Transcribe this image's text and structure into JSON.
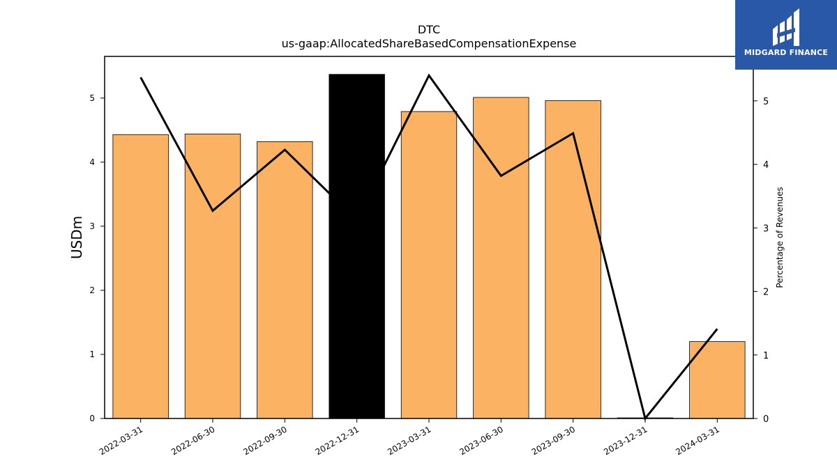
{
  "brand": {
    "name": "MIDGARD FINANCE",
    "color": "#2a58a8"
  },
  "chart_data": {
    "type": "bar",
    "title": "DTC",
    "subtitle": "us-gaap:AllocatedShareBasedCompensationExpense",
    "ylabel": "USDm",
    "y2label": "Percentage of Revenues",
    "categories": [
      "2022-03-31",
      "2022-06-30",
      "2022-09-30",
      "2022-12-31",
      "2023-03-31",
      "2023-06-30",
      "2023-09-30",
      "2023-12-31",
      "2024-03-31"
    ],
    "series": [
      {
        "type": "bar",
        "axis": "left",
        "values": [
          4.43,
          4.44,
          4.32,
          5.37,
          4.79,
          5.01,
          4.96,
          0.01,
          1.2
        ],
        "colors": [
          "#fbb262",
          "#fbb262",
          "#fbb262",
          "#000000",
          "#fbb262",
          "#fbb262",
          "#fbb262",
          "#fbb262",
          "#fbb262"
        ]
      },
      {
        "type": "line",
        "axis": "right",
        "values": [
          5.37,
          3.27,
          4.23,
          3.12,
          5.4,
          3.82,
          4.49,
          0.0,
          1.41
        ],
        "color": "#000000"
      }
    ],
    "ylim": [
      0,
      5.65
    ],
    "y2lim": [
      0,
      5.7
    ],
    "yticks": [
      0,
      1,
      2,
      3,
      4,
      5
    ],
    "y2ticks": [
      0,
      1,
      2,
      3,
      4,
      5
    ],
    "grid": false,
    "legend": "none"
  }
}
